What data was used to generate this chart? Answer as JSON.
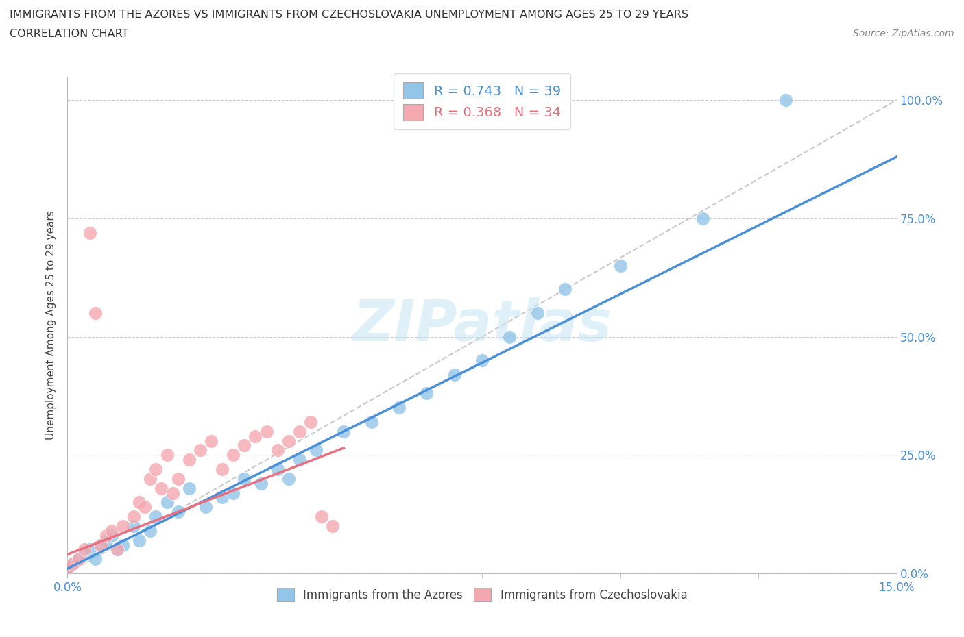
{
  "title_line1": "IMMIGRANTS FROM THE AZORES VS IMMIGRANTS FROM CZECHOSLOVAKIA UNEMPLOYMENT AMONG AGES 25 TO 29 YEARS",
  "title_line2": "CORRELATION CHART",
  "source_text": "Source: ZipAtlas.com",
  "ylabel": "Unemployment Among Ages 25 to 29 years",
  "xmin": 0.0,
  "xmax": 0.15,
  "ymin": 0.0,
  "ymax": 1.05,
  "right_ytick_labels": [
    "0.0%",
    "25.0%",
    "50.0%",
    "75.0%",
    "100.0%"
  ],
  "right_ytick_values": [
    0.0,
    0.25,
    0.5,
    0.75,
    1.0
  ],
  "watermark": "ZIPatlas",
  "legend_azores": "R = 0.743   N = 39",
  "legend_czech": "R = 0.368   N = 34",
  "color_azores": "#92C5E8",
  "color_czech": "#F4A8B0",
  "color_line_azores": "#4A90D9",
  "color_line_czech": "#E87080",
  "color_diag": "#C8C8C8",
  "azores_x": [
    0.0,
    0.001,
    0.002,
    0.003,
    0.004,
    0.005,
    0.006,
    0.007,
    0.008,
    0.009,
    0.01,
    0.012,
    0.013,
    0.015,
    0.016,
    0.018,
    0.02,
    0.022,
    0.025,
    0.028,
    0.03,
    0.032,
    0.035,
    0.038,
    0.04,
    0.042,
    0.045,
    0.05,
    0.055,
    0.06,
    0.065,
    0.07,
    0.075,
    0.08,
    0.085,
    0.09,
    0.1,
    0.115,
    0.13
  ],
  "azores_y": [
    0.01,
    0.02,
    0.03,
    0.04,
    0.05,
    0.03,
    0.06,
    0.07,
    0.08,
    0.05,
    0.06,
    0.1,
    0.07,
    0.09,
    0.12,
    0.15,
    0.13,
    0.18,
    0.14,
    0.16,
    0.17,
    0.2,
    0.19,
    0.22,
    0.2,
    0.24,
    0.26,
    0.3,
    0.32,
    0.35,
    0.38,
    0.42,
    0.45,
    0.5,
    0.55,
    0.6,
    0.65,
    0.75,
    1.0
  ],
  "czech_x": [
    0.0,
    0.001,
    0.002,
    0.003,
    0.004,
    0.005,
    0.006,
    0.007,
    0.008,
    0.009,
    0.01,
    0.012,
    0.013,
    0.014,
    0.015,
    0.016,
    0.017,
    0.018,
    0.019,
    0.02,
    0.022,
    0.024,
    0.026,
    0.028,
    0.03,
    0.032,
    0.034,
    0.036,
    0.038,
    0.04,
    0.042,
    0.044,
    0.046,
    0.048
  ],
  "czech_y": [
    0.01,
    0.02,
    0.03,
    0.05,
    0.72,
    0.55,
    0.06,
    0.08,
    0.09,
    0.05,
    0.1,
    0.12,
    0.15,
    0.14,
    0.2,
    0.22,
    0.18,
    0.25,
    0.17,
    0.2,
    0.24,
    0.26,
    0.28,
    0.22,
    0.25,
    0.27,
    0.29,
    0.3,
    0.26,
    0.28,
    0.3,
    0.32,
    0.12,
    0.1
  ],
  "slope_az": 5.8,
  "intercept_az": 0.01,
  "slope_cz": 4.5,
  "intercept_cz": 0.04
}
